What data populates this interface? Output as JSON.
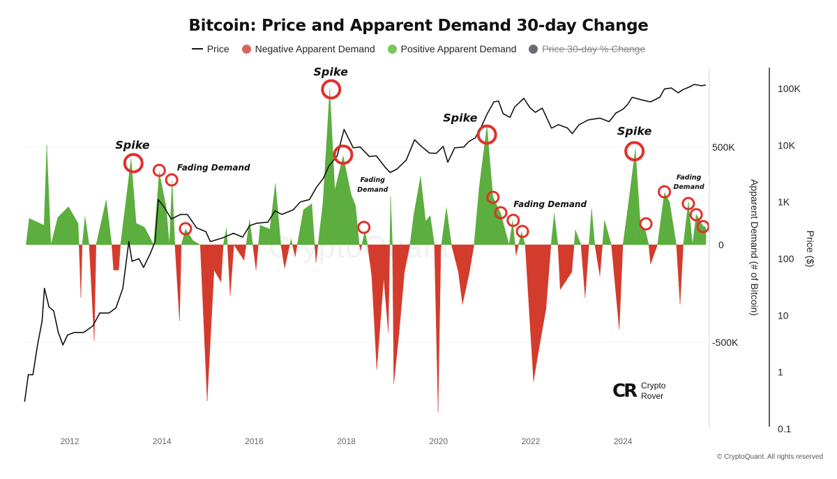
{
  "chart_data": {
    "type": "area",
    "title": "Bitcoin: Price and Apparent Demand 30-day Change",
    "legend": {
      "placement": "top",
      "items": [
        {
          "label": "Price",
          "color": "#111111",
          "marker": "line"
        },
        {
          "label": "Negative Apparent Demand",
          "color": "#d9635a",
          "marker": "dot"
        },
        {
          "label": "Positive Apparent Demand",
          "color": "#7cc45e",
          "marker": "dot"
        },
        {
          "label": "Price 30-day % Change",
          "color": "#6b6b78",
          "marker": "dot",
          "hidden": true
        }
      ]
    },
    "colors": {
      "positive": "#5cae3e",
      "negative": "#d33b2c",
      "price": "#111111",
      "annotation_circle": "#e0312a"
    },
    "xlim": [
      2011.0,
      2025.86
    ],
    "x_ticks": [
      "2012",
      "2014",
      "2016",
      "2018",
      "2020",
      "2022",
      "2024"
    ],
    "y_left": {
      "label": "Apparent Demand (# of Bitcoin)",
      "range_k": [
        -940,
        915
      ],
      "ticks": [
        {
          "value": 500000,
          "label": "500K"
        },
        {
          "value": 0,
          "label": "0"
        },
        {
          "value": -500000,
          "label": "-500K"
        }
      ]
    },
    "y_right": {
      "label": "Price ($)",
      "scale": "log",
      "ticks": [
        {
          "value": 100000,
          "label": "100K"
        },
        {
          "value": 10000,
          "label": "10K"
        },
        {
          "value": 1000,
          "label": "1K"
        },
        {
          "value": 100,
          "label": "100"
        },
        {
          "value": 10,
          "label": "10"
        },
        {
          "value": 1,
          "label": "1"
        },
        {
          "value": 0.1,
          "label": "0.1"
        }
      ]
    },
    "grid": "horizontal-light",
    "demand_series_k": [
      [
        2011.05,
        0
      ],
      [
        2011.12,
        135
      ],
      [
        2011.44,
        100
      ],
      [
        2011.5,
        510
      ],
      [
        2011.59,
        0
      ],
      [
        2011.74,
        140
      ],
      [
        2011.97,
        195
      ],
      [
        2012.18,
        110
      ],
      [
        2012.2,
        0
      ],
      [
        2012.24,
        -270
      ],
      [
        2012.27,
        0
      ],
      [
        2012.33,
        145
      ],
      [
        2012.42,
        0
      ],
      [
        2012.53,
        -490
      ],
      [
        2012.57,
        0
      ],
      [
        2012.79,
        230
      ],
      [
        2012.91,
        0
      ],
      [
        2012.95,
        -130
      ],
      [
        2013.06,
        -130
      ],
      [
        2013.1,
        0
      ],
      [
        2013.33,
        440
      ],
      [
        2013.44,
        110
      ],
      [
        2013.62,
        90
      ],
      [
        2013.82,
        0
      ],
      [
        2013.94,
        370
      ],
      [
        2014.09,
        195
      ],
      [
        2014.16,
        0
      ],
      [
        2014.22,
        330
      ],
      [
        2014.28,
        0
      ],
      [
        2014.38,
        -390
      ],
      [
        2014.42,
        0
      ],
      [
        2014.51,
        80
      ],
      [
        2014.68,
        20
      ],
      [
        2014.83,
        0
      ],
      [
        2014.98,
        -800
      ],
      [
        2015.13,
        -130
      ],
      [
        2015.28,
        -190
      ],
      [
        2015.33,
        0
      ],
      [
        2015.4,
        85
      ],
      [
        2015.48,
        -260
      ],
      [
        2015.56,
        0
      ],
      [
        2015.78,
        -80
      ],
      [
        2015.9,
        130
      ],
      [
        2016.04,
        -130
      ],
      [
        2016.13,
        100
      ],
      [
        2016.34,
        80
      ],
      [
        2016.46,
        315
      ],
      [
        2016.58,
        0
      ],
      [
        2016.66,
        -120
      ],
      [
        2016.8,
        30
      ],
      [
        2016.89,
        -60
      ],
      [
        2017.07,
        180
      ],
      [
        2017.25,
        210
      ],
      [
        2017.34,
        -90
      ],
      [
        2017.49,
        210
      ],
      [
        2017.64,
        800
      ],
      [
        2017.75,
        280
      ],
      [
        2017.93,
        455
      ],
      [
        2018.1,
        260
      ],
      [
        2018.2,
        200
      ],
      [
        2018.28,
        0
      ],
      [
        2018.31,
        -30
      ],
      [
        2018.4,
        70
      ],
      [
        2018.46,
        0
      ],
      [
        2018.55,
        -160
      ],
      [
        2018.66,
        -640
      ],
      [
        2018.81,
        -170
      ],
      [
        2018.91,
        -450
      ],
      [
        2018.96,
        245
      ],
      [
        2019.0,
        0
      ],
      [
        2019.03,
        -710
      ],
      [
        2019.14,
        -460
      ],
      [
        2019.26,
        -140
      ],
      [
        2019.38,
        0
      ],
      [
        2019.46,
        150
      ],
      [
        2019.61,
        350
      ],
      [
        2019.72,
        120
      ],
      [
        2019.82,
        150
      ],
      [
        2019.91,
        0
      ],
      [
        2019.99,
        -855
      ],
      [
        2020.05,
        -20
      ],
      [
        2020.17,
        190
      ],
      [
        2020.28,
        0
      ],
      [
        2020.43,
        -140
      ],
      [
        2020.52,
        -305
      ],
      [
        2020.67,
        -140
      ],
      [
        2020.77,
        0
      ],
      [
        2020.88,
        290
      ],
      [
        2021.05,
        610
      ],
      [
        2021.18,
        245
      ],
      [
        2021.35,
        160
      ],
      [
        2021.53,
        0
      ],
      [
        2021.61,
        125
      ],
      [
        2021.68,
        -55
      ],
      [
        2021.8,
        65
      ],
      [
        2021.88,
        0
      ],
      [
        2022.06,
        -700
      ],
      [
        2022.18,
        -530
      ],
      [
        2022.33,
        -330
      ],
      [
        2022.44,
        0
      ],
      [
        2022.51,
        160
      ],
      [
        2022.59,
        0
      ],
      [
        2022.64,
        -230
      ],
      [
        2022.89,
        -140
      ],
      [
        2022.97,
        75
      ],
      [
        2023.09,
        0
      ],
      [
        2023.18,
        -270
      ],
      [
        2023.32,
        185
      ],
      [
        2023.39,
        0
      ],
      [
        2023.5,
        -160
      ],
      [
        2023.6,
        125
      ],
      [
        2023.75,
        0
      ],
      [
        2023.92,
        -435
      ],
      [
        2024.0,
        0
      ],
      [
        2024.1,
        175
      ],
      [
        2024.27,
        490
      ],
      [
        2024.38,
        100
      ],
      [
        2024.48,
        80
      ],
      [
        2024.56,
        0
      ],
      [
        2024.6,
        -100
      ],
      [
        2024.75,
        0
      ],
      [
        2024.9,
        265
      ],
      [
        2025.01,
        220
      ],
      [
        2025.16,
        0
      ],
      [
        2025.24,
        -305
      ],
      [
        2025.31,
        0
      ],
      [
        2025.42,
        220
      ],
      [
        2025.51,
        0
      ],
      [
        2025.59,
        155
      ],
      [
        2025.74,
        95
      ],
      [
        2025.8,
        90
      ]
    ],
    "price_series": [
      [
        2011.02,
        0.3
      ],
      [
        2011.1,
        0.9
      ],
      [
        2011.2,
        0.9
      ],
      [
        2011.3,
        3
      ],
      [
        2011.4,
        8
      ],
      [
        2011.45,
        30
      ],
      [
        2011.55,
        14
      ],
      [
        2011.65,
        12
      ],
      [
        2011.75,
        5
      ],
      [
        2011.85,
        3
      ],
      [
        2011.95,
        4.5
      ],
      [
        2012.1,
        5
      ],
      [
        2012.3,
        5
      ],
      [
        2012.5,
        6.5
      ],
      [
        2012.65,
        11
      ],
      [
        2012.85,
        11
      ],
      [
        2013.0,
        13.5
      ],
      [
        2013.15,
        30
      ],
      [
        2013.28,
        200
      ],
      [
        2013.35,
        90
      ],
      [
        2013.5,
        100
      ],
      [
        2013.6,
        70
      ],
      [
        2013.75,
        125
      ],
      [
        2013.85,
        200
      ],
      [
        2013.92,
        1100
      ],
      [
        2014.05,
        800
      ],
      [
        2014.2,
        500
      ],
      [
        2014.4,
        600
      ],
      [
        2014.55,
        600
      ],
      [
        2014.75,
        350
      ],
      [
        2014.95,
        300
      ],
      [
        2015.05,
        200
      ],
      [
        2015.3,
        230
      ],
      [
        2015.55,
        280
      ],
      [
        2015.75,
        240
      ],
      [
        2015.9,
        380
      ],
      [
        2016.05,
        420
      ],
      [
        2016.3,
        440
      ],
      [
        2016.45,
        700
      ],
      [
        2016.6,
        600
      ],
      [
        2016.85,
        730
      ],
      [
        2017.0,
        1000
      ],
      [
        2017.2,
        1100
      ],
      [
        2017.35,
        1800
      ],
      [
        2017.5,
        2600
      ],
      [
        2017.62,
        4300
      ],
      [
        2017.8,
        6500
      ],
      [
        2017.95,
        19000
      ],
      [
        2018.05,
        13000
      ],
      [
        2018.15,
        9000
      ],
      [
        2018.3,
        9300
      ],
      [
        2018.5,
        6300
      ],
      [
        2018.65,
        6500
      ],
      [
        2018.85,
        4000
      ],
      [
        2018.95,
        3300
      ],
      [
        2019.1,
        3800
      ],
      [
        2019.3,
        5500
      ],
      [
        2019.48,
        12500
      ],
      [
        2019.6,
        10000
      ],
      [
        2019.8,
        7300
      ],
      [
        2019.95,
        7200
      ],
      [
        2020.1,
        9500
      ],
      [
        2020.2,
        5000
      ],
      [
        2020.35,
        9000
      ],
      [
        2020.55,
        9300
      ],
      [
        2020.65,
        11500
      ],
      [
        2020.8,
        13500
      ],
      [
        2020.95,
        23000
      ],
      [
        2021.05,
        35000
      ],
      [
        2021.2,
        58000
      ],
      [
        2021.3,
        60000
      ],
      [
        2021.4,
        36000
      ],
      [
        2021.55,
        31000
      ],
      [
        2021.65,
        47000
      ],
      [
        2021.85,
        67000
      ],
      [
        2021.98,
        46000
      ],
      [
        2022.1,
        38000
      ],
      [
        2022.25,
        45000
      ],
      [
        2022.45,
        20000
      ],
      [
        2022.6,
        23000
      ],
      [
        2022.8,
        20000
      ],
      [
        2022.9,
        16000
      ],
      [
        2023.05,
        23000
      ],
      [
        2023.25,
        28000
      ],
      [
        2023.5,
        30000
      ],
      [
        2023.7,
        26000
      ],
      [
        2023.85,
        37000
      ],
      [
        2024.0,
        43000
      ],
      [
        2024.1,
        52000
      ],
      [
        2024.2,
        70000
      ],
      [
        2024.4,
        63000
      ],
      [
        2024.6,
        58000
      ],
      [
        2024.8,
        70000
      ],
      [
        2024.9,
        98000
      ],
      [
        2025.05,
        102000
      ],
      [
        2025.2,
        84000
      ],
      [
        2025.3,
        95000
      ],
      [
        2025.45,
        107000
      ],
      [
        2025.55,
        118000
      ],
      [
        2025.7,
        112000
      ],
      [
        2025.8,
        115000
      ]
    ],
    "annotation_circles": [
      [
        2013.38,
        418
      ],
      [
        2013.94,
        381
      ],
      [
        2014.21,
        332
      ],
      [
        2014.51,
        82
      ],
      [
        2017.67,
        796
      ],
      [
        2017.93,
        461
      ],
      [
        2018.38,
        89
      ],
      [
        2021.05,
        564
      ],
      [
        2021.18,
        243
      ],
      [
        2021.35,
        164
      ],
      [
        2021.62,
        125
      ],
      [
        2021.82,
        68
      ],
      [
        2024.25,
        479
      ],
      [
        2024.5,
        107
      ],
      [
        2024.9,
        271
      ],
      [
        2025.42,
        211
      ],
      [
        2025.59,
        154
      ],
      [
        2025.74,
        93
      ]
    ],
    "annotations": [
      {
        "text": "Spike",
        "x": 2013.36,
        "y_k": 511,
        "size": "large"
      },
      {
        "text": "Spike",
        "x": 2017.66,
        "y_k": 886,
        "size": "large"
      },
      {
        "text": "Spike",
        "x": 2020.47,
        "y_k": 650,
        "size": "large"
      },
      {
        "text": "Spike",
        "x": 2024.25,
        "y_k": 582,
        "size": "large"
      },
      {
        "text": "Fading Demand",
        "x": 2015.12,
        "y_k": 396,
        "size": "medium"
      },
      {
        "text": "Fading\nDemand",
        "x": 2018.57,
        "y_k": 307,
        "size": "small"
      },
      {
        "text": "Fading Demand",
        "x": 2022.42,
        "y_k": 207,
        "size": "medium"
      },
      {
        "text": "Fading\nDemand",
        "x": 2025.43,
        "y_k": 321,
        "size": "small"
      }
    ]
  },
  "watermark": "CryptoQuant",
  "logo": {
    "line1": "Crypto",
    "line2": "Rover",
    "mark": "CR"
  },
  "copyright": "© CryptoQuant. All rights reserved"
}
